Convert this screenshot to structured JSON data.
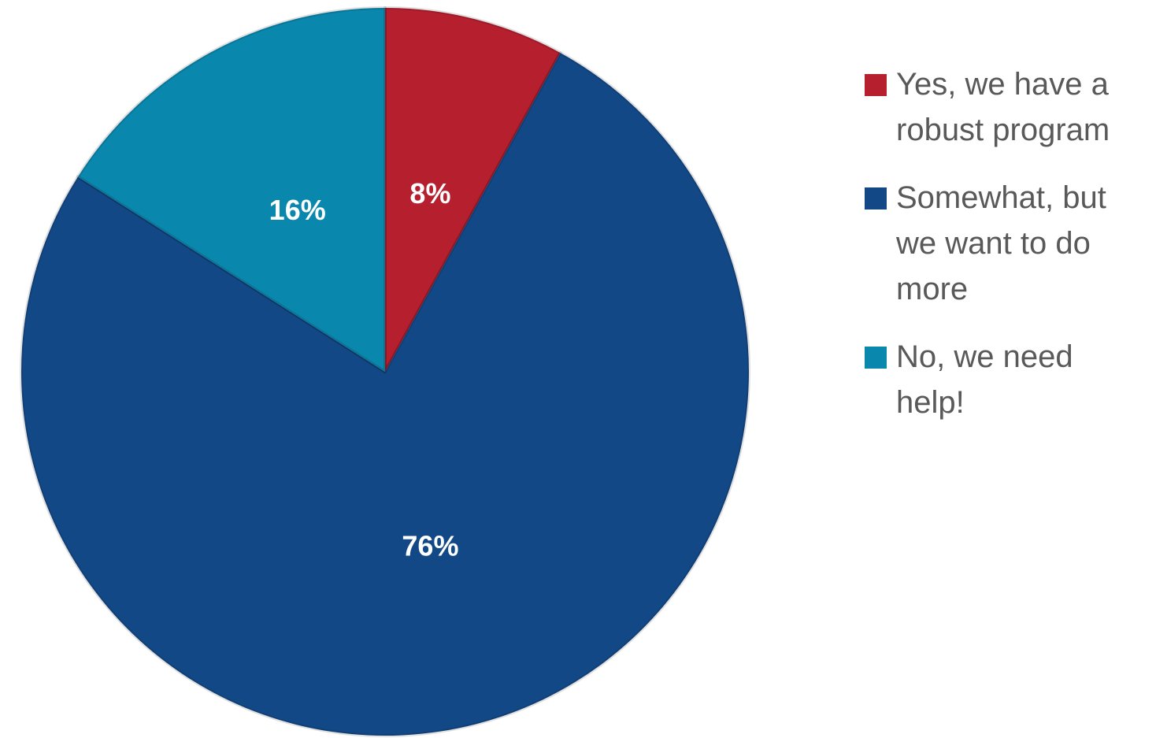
{
  "chart_data": {
    "type": "pie",
    "title": "",
    "start_angle_deg": 0,
    "direction": "clockwise",
    "legend_position": "right",
    "slices": [
      {
        "label": "Yes, we have a robust program",
        "value": 8,
        "value_label": "8%",
        "color": "#B51F2E"
      },
      {
        "label": "Somewhat, but we want to do more",
        "value": 76,
        "value_label": "76%",
        "color": "#134886"
      },
      {
        "label": "No, we need help!",
        "value": 16,
        "value_label": "16%",
        "color": "#0A87AD"
      }
    ]
  }
}
